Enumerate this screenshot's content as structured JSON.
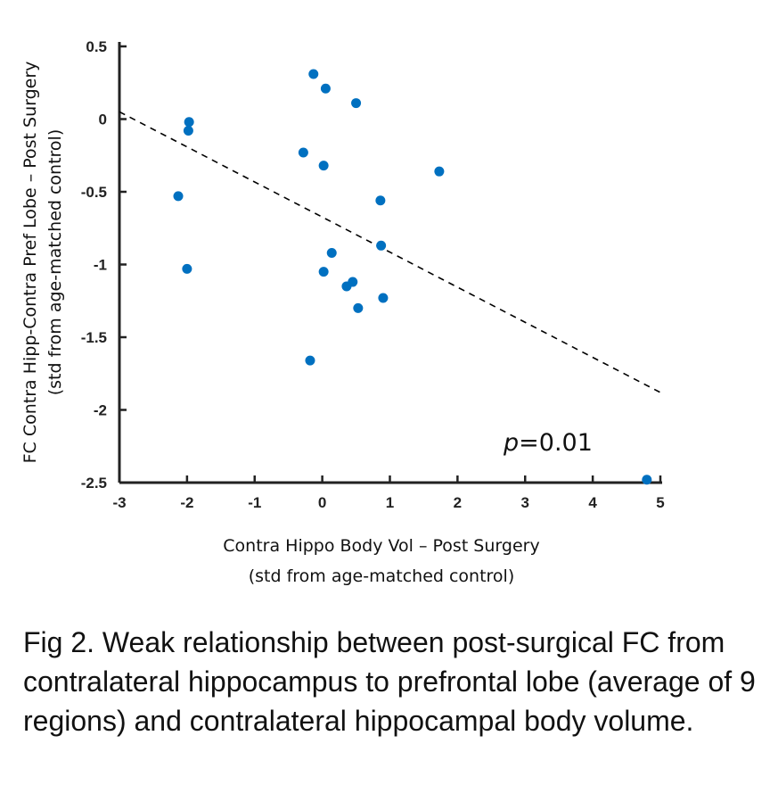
{
  "chart_data": {
    "type": "scatter",
    "xlabel": [
      "Contra Hippo Body Vol – Post Surgery",
      "(std from age-matched control)"
    ],
    "ylabel": [
      "FC Contra Hipp-Contra Pref Lobe – Post Surgery",
      "(std from age-matched control)"
    ],
    "xlim": [
      -3,
      5
    ],
    "ylim": [
      -2.5,
      0.5
    ],
    "xticks": [
      -3,
      -2,
      -1,
      0,
      1,
      2,
      3,
      4,
      5
    ],
    "yticks": [
      0.5,
      0,
      -0.5,
      -1,
      -1.5,
      -2,
      -2.5
    ],
    "grid": false,
    "point_color": "#0070C0",
    "points": [
      {
        "x": -0.13,
        "y": 0.31
      },
      {
        "x": 0.05,
        "y": 0.21
      },
      {
        "x": 0.5,
        "y": 0.11
      },
      {
        "x": -1.97,
        "y": -0.02
      },
      {
        "x": -1.98,
        "y": -0.08
      },
      {
        "x": -0.28,
        "y": -0.23
      },
      {
        "x": 0.02,
        "y": -0.32
      },
      {
        "x": 1.73,
        "y": -0.36
      },
      {
        "x": -2.13,
        "y": -0.53
      },
      {
        "x": 0.86,
        "y": -0.56
      },
      {
        "x": 0.87,
        "y": -0.87
      },
      {
        "x": 0.14,
        "y": -0.92
      },
      {
        "x": -2.0,
        "y": -1.03
      },
      {
        "x": 0.02,
        "y": -1.05
      },
      {
        "x": 0.36,
        "y": -1.15
      },
      {
        "x": 0.45,
        "y": -1.12
      },
      {
        "x": 0.9,
        "y": -1.23
      },
      {
        "x": 0.53,
        "y": -1.3
      },
      {
        "x": -0.18,
        "y": -1.66
      },
      {
        "x": 4.8,
        "y": -2.48
      }
    ],
    "trendline": {
      "style": "dashed",
      "color": "#000000",
      "from": {
        "x": -3,
        "y": 0.05
      },
      "to": {
        "x": 5,
        "y": -1.88
      }
    },
    "annotation": {
      "p_symbol": "p",
      "text": "=0.01"
    }
  },
  "caption": "Fig 2. Weak relationship between post-surgical FC from contralateral hippocampus to prefrontal lobe (average of 9 regions) and contralateral hippocampal body volume."
}
